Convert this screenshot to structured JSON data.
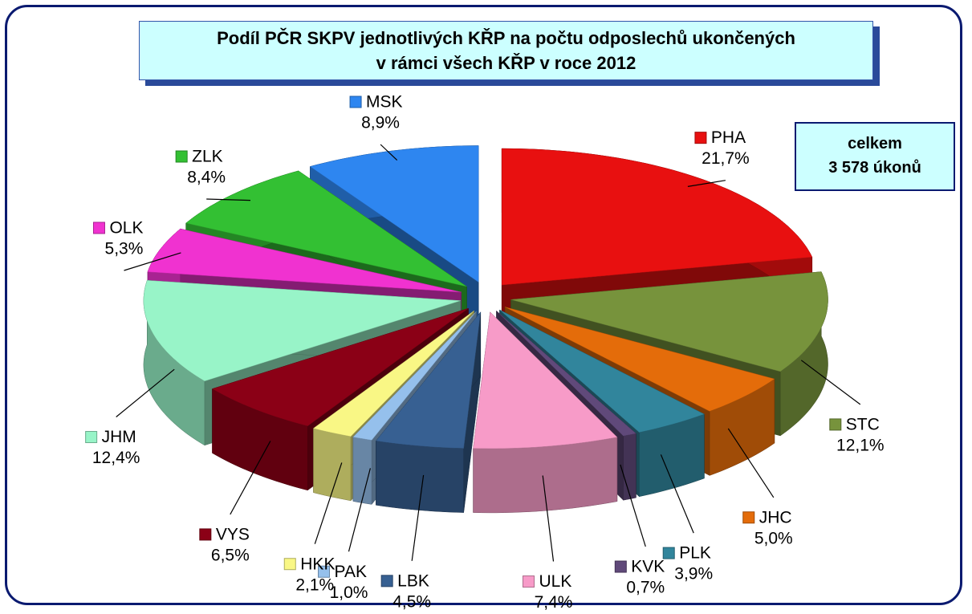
{
  "chart_data": {
    "type": "pie",
    "title": "Podíl PČR SKPV jednotlivých KŘP na počtu odposlechů ukončených\nv rámci všech KŘP v roce 2012",
    "annotation": "celkem\n3 578 úkonů",
    "categories": [
      "PHA",
      "STC",
      "JHC",
      "PLK",
      "KVK",
      "ULK",
      "LBK",
      "PAK",
      "HKK",
      "VYS",
      "JHM",
      "OLK",
      "ZLK",
      "MSK"
    ],
    "values": [
      21.7,
      12.1,
      5.0,
      3.9,
      0.7,
      7.4,
      4.5,
      1.0,
      2.1,
      6.5,
      12.4,
      5.3,
      8.4,
      8.9
    ],
    "value_labels": [
      "21,7%",
      "12,1%",
      "5,0%",
      "3,9%",
      "0,7%",
      "7,4%",
      "4,5%",
      "1,0%",
      "2,1%",
      "6,5%",
      "12,4%",
      "5,3%",
      "8,4%",
      "8,9%"
    ],
    "colors": [
      "#e81010",
      "#77933c",
      "#e46c0a",
      "#31859c",
      "#60497a",
      "#f79bc8",
      "#376092",
      "#95c0ec",
      "#f9f785",
      "#8b0016",
      "#98f4c8",
      "#f032d0",
      "#33c033",
      "#2e86f0"
    ]
  }
}
